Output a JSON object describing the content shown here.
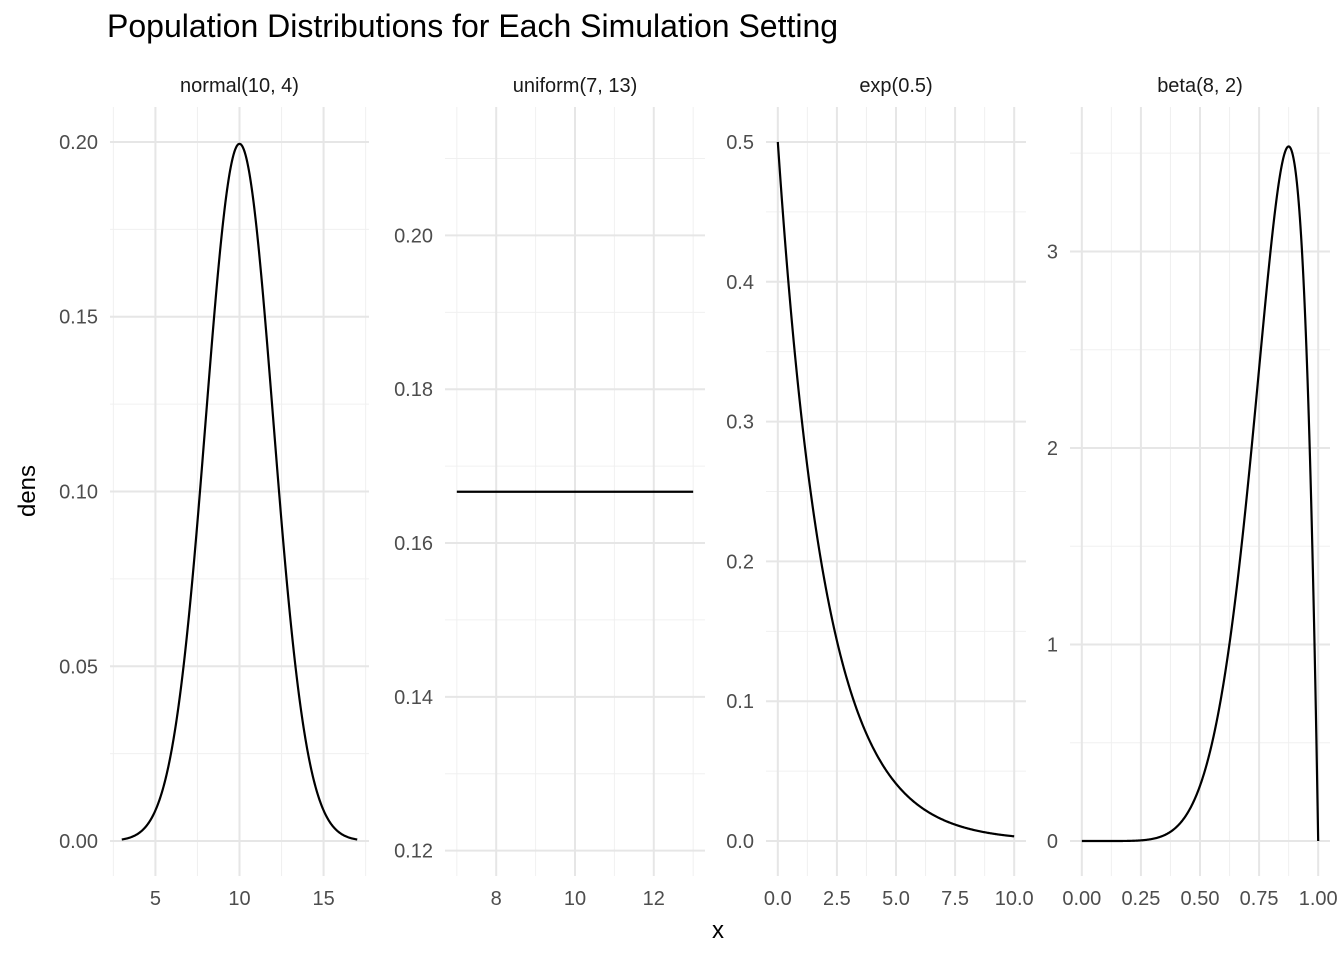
{
  "title": "Population Distributions for Each Simulation Setting",
  "xlabel": "x",
  "ylabel": "dens",
  "chart_data": [
    {
      "type": "line",
      "panel": "normal(10, 4)",
      "distribution": "normal",
      "params": {
        "mean": 10,
        "var": 4
      },
      "x_range": [
        3,
        17
      ],
      "xlim": [
        2.3,
        17.7
      ],
      "ylim": [
        -0.01,
        0.21
      ],
      "x_ticks": [
        5,
        10,
        15
      ],
      "x_tick_labels": [
        "5",
        "10",
        "15"
      ],
      "y_ticks": [
        0.0,
        0.05,
        0.1,
        0.15,
        0.2
      ],
      "y_tick_labels": [
        "0.00",
        "0.05",
        "0.10",
        "0.15",
        "0.20"
      ]
    },
    {
      "type": "line",
      "panel": "uniform(7, 13)",
      "distribution": "uniform",
      "params": {
        "min": 7,
        "max": 13
      },
      "x_range": [
        7,
        13
      ],
      "xlim": [
        6.7,
        13.3
      ],
      "ylim": [
        0.1167,
        0.2167
      ],
      "x_ticks": [
        8,
        10,
        12
      ],
      "x_tick_labels": [
        "8",
        "10",
        "12"
      ],
      "y_ticks": [
        0.12,
        0.14,
        0.16,
        0.18,
        0.2
      ],
      "y_tick_labels": [
        "0.12",
        "0.14",
        "0.16",
        "0.18",
        "0.20"
      ]
    },
    {
      "type": "line",
      "panel": "exp(0.5)",
      "distribution": "exponential",
      "params": {
        "rate": 0.5
      },
      "x_range": [
        0,
        10
      ],
      "xlim": [
        -0.5,
        10.5
      ],
      "ylim": [
        -0.025,
        0.525
      ],
      "x_ticks": [
        0,
        2.5,
        5,
        7.5,
        10
      ],
      "x_tick_labels": [
        "0.0",
        "2.5",
        "5.0",
        "7.5",
        "10.0"
      ],
      "y_ticks": [
        0.0,
        0.1,
        0.2,
        0.3,
        0.4,
        0.5
      ],
      "y_tick_labels": [
        "0.0",
        "0.1",
        "0.2",
        "0.3",
        "0.4",
        "0.5"
      ]
    },
    {
      "type": "line",
      "panel": "beta(8, 2)",
      "distribution": "beta",
      "params": {
        "a": 8,
        "b": 2
      },
      "x_range": [
        0,
        1
      ],
      "xlim": [
        -0.05,
        1.05
      ],
      "ylim": [
        -0.178,
        3.735
      ],
      "x_ticks": [
        0,
        0.25,
        0.5,
        0.75,
        1
      ],
      "x_tick_labels": [
        "0.00",
        "0.25",
        "0.50",
        "0.75",
        "1.00"
      ],
      "y_ticks": [
        0,
        1,
        2,
        3
      ],
      "y_tick_labels": [
        "0",
        "1",
        "2",
        "3"
      ]
    }
  ]
}
